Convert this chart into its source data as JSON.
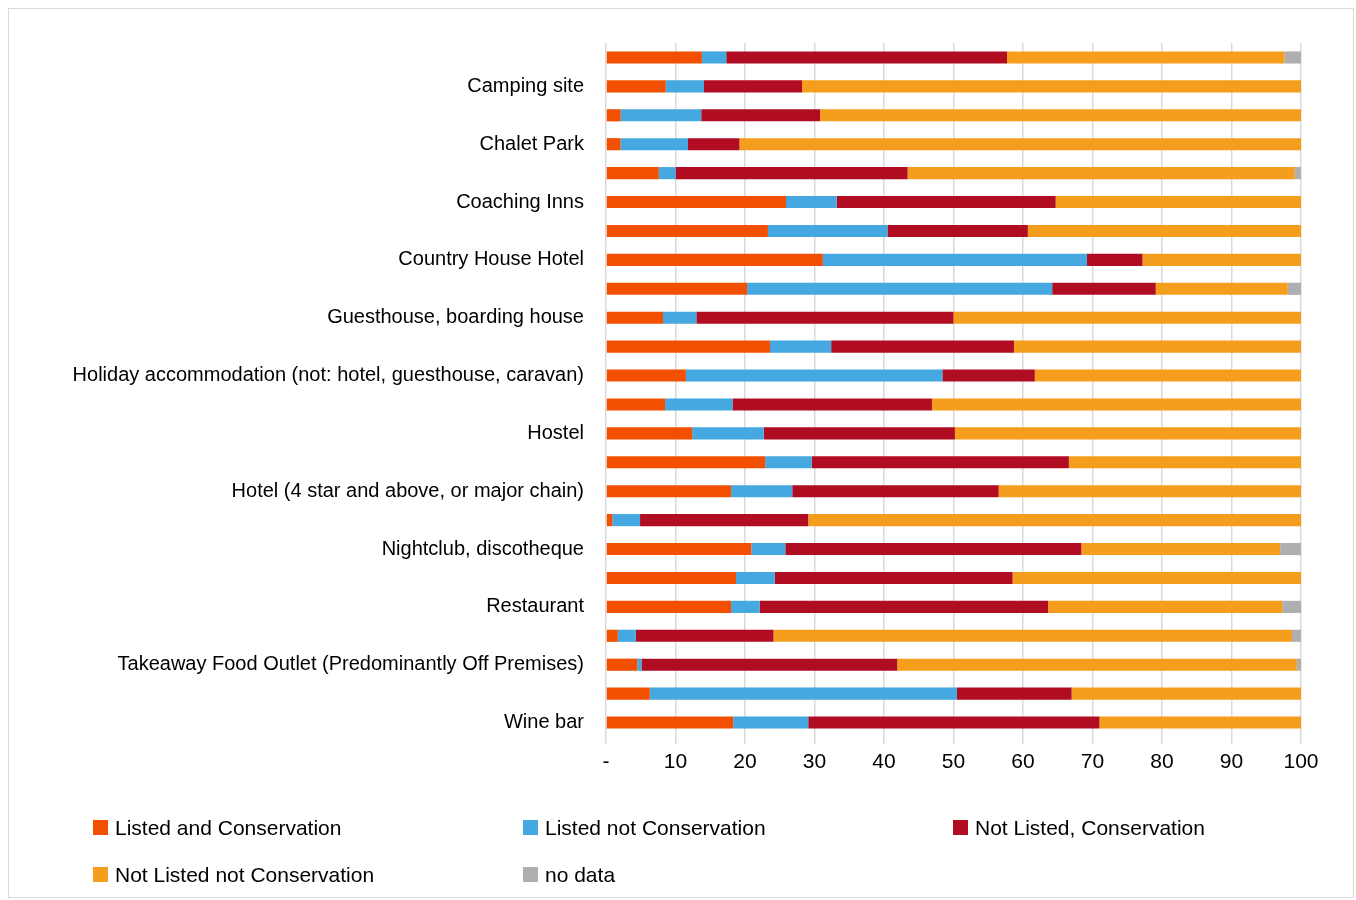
{
  "chart_data": {
    "type": "bar",
    "orientation": "horizontal",
    "stacked": true,
    "categories": [
      null,
      "Camping site",
      null,
      "Chalet Park",
      null,
      "Coaching Inns",
      null,
      "Country House Hotel",
      null,
      "Guesthouse, boarding house",
      null,
      "Holiday accommodation (not: hotel, guesthouse, caravan)",
      null,
      "Hostel",
      null,
      "Hotel (4 star and above, or major chain)",
      null,
      "Nightclub, discotheque",
      null,
      "Restaurant",
      null,
      "Takeaway Food Outlet (Predominantly Off Premises)",
      null,
      "Wine bar"
    ],
    "series": [
      {
        "name": "Listed and Conservation",
        "color": "#f24f00",
        "values": [
          13.8,
          8.6,
          2.1,
          2.1,
          7.6,
          25.9,
          23.3,
          31.2,
          20.3,
          8.2,
          23.6,
          11.5,
          8.5,
          12.4,
          22.9,
          18.0,
          0.9,
          20.9,
          18.7,
          18.0,
          1.7,
          4.5,
          6.3,
          18.3
        ]
      },
      {
        "name": "Listed not Conservation",
        "color": "#45a8e0",
        "values": [
          3.5,
          5.5,
          11.6,
          9.7,
          2.4,
          7.3,
          17.2,
          38.0,
          43.9,
          4.8,
          8.8,
          36.9,
          9.7,
          10.3,
          6.7,
          8.8,
          4.0,
          4.9,
          5.6,
          4.1,
          2.6,
          0.6,
          44.2,
          10.8
        ]
      },
      {
        "name": "Not Listed, Conservation",
        "color": "#b00d23",
        "values": [
          40.4,
          14.1,
          17.1,
          7.4,
          33.4,
          31.5,
          20.2,
          8.0,
          14.9,
          37.0,
          26.3,
          13.3,
          28.7,
          27.5,
          37.0,
          29.7,
          24.2,
          42.6,
          34.2,
          41.5,
          19.8,
          36.8,
          16.5,
          41.9
        ]
      },
      {
        "name": "Not Listed not Conservation",
        "color": "#f59d1d",
        "values": [
          39.9,
          71.8,
          69.2,
          80.8,
          55.7,
          35.3,
          39.3,
          22.8,
          19.0,
          50.0,
          41.3,
          38.3,
          53.1,
          49.8,
          33.4,
          43.5,
          70.9,
          28.6,
          41.5,
          33.7,
          74.6,
          57.5,
          33.0,
          29.0
        ]
      },
      {
        "name": "no data",
        "color": "#afafaf",
        "values": [
          2.4,
          0,
          0,
          0,
          0.9,
          0,
          0,
          0,
          1.9,
          0,
          0,
          0,
          0,
          0,
          0,
          0,
          0,
          3.0,
          0,
          2.7,
          1.3,
          0.6,
          0,
          0
        ]
      }
    ],
    "xlim": [
      0,
      100
    ],
    "xticks": [
      {
        "value": 0,
        "label": "-"
      },
      10,
      20,
      30,
      40,
      50,
      60,
      70,
      80,
      90,
      100
    ],
    "grid": "x",
    "legend": "bottom"
  }
}
